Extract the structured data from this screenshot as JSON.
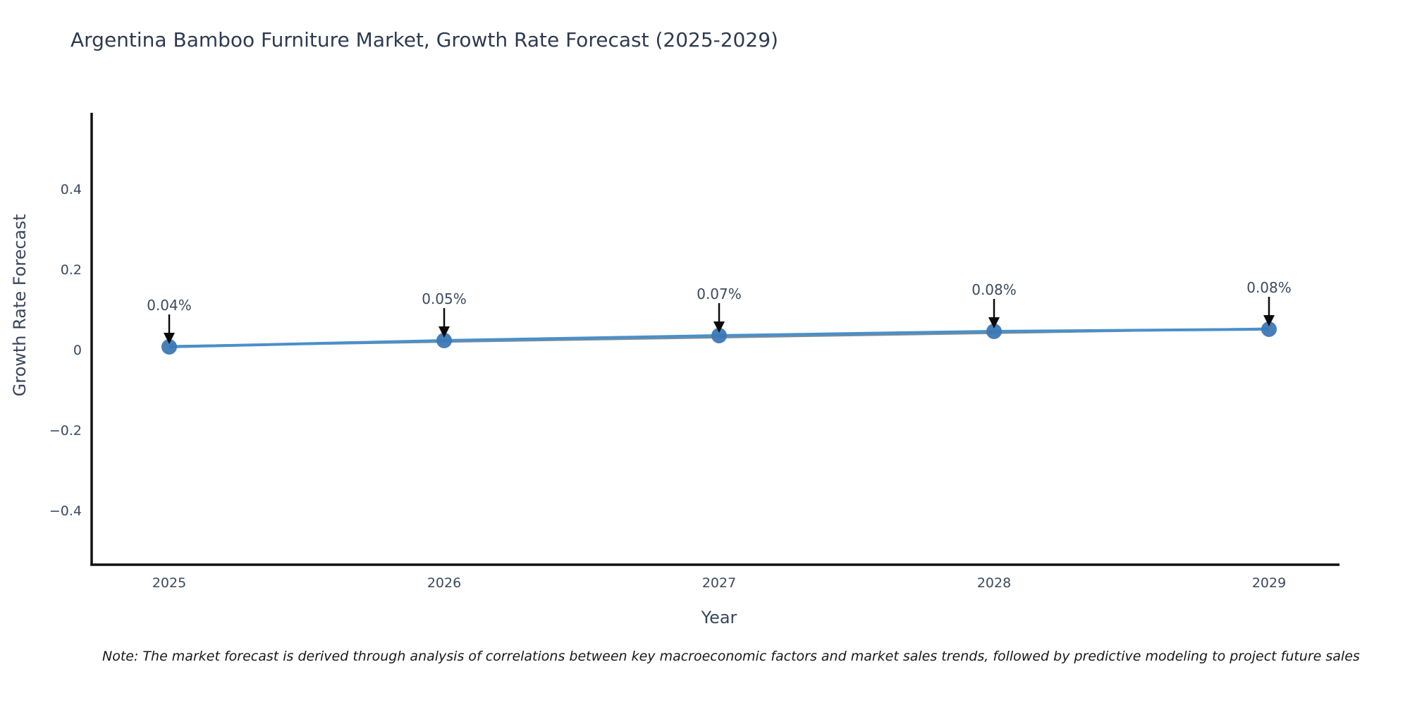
{
  "title": "Argentina Bamboo Furniture Market, Growth Rate Forecast (2025-2029)",
  "note": "Note: The market forecast is derived through analysis of correlations between key macroeconomic factors and market sales trends, followed by predictive modeling to project future sales",
  "chart_data": {
    "type": "line",
    "title": "Argentina Bamboo Furniture Market, Growth Rate Forecast (2025-2029)",
    "xlabel": "Year",
    "ylabel": "Growth Rate Forecast",
    "categories": [
      "2025",
      "2026",
      "2027",
      "2028",
      "2029"
    ],
    "series": [
      {
        "name": "Growth Rate Forecast",
        "values": [
          0.04,
          0.05,
          0.07,
          0.08,
          0.08
        ]
      }
    ],
    "point_labels": [
      "0.04%",
      "0.05%",
      "0.07%",
      "0.08%",
      "0.08%"
    ],
    "ytick_labels": [
      "0.4",
      "0.2",
      "0",
      "−0.2",
      "−0.4"
    ],
    "ytick_values": [
      0.4,
      0.2,
      0,
      -0.2,
      -0.4
    ],
    "ylim": [
      -0.54,
      0.59
    ],
    "grid": false,
    "legend": false,
    "annotations": "black down-arrows from each data label to its marker",
    "colors": {
      "line": "#4a90ca",
      "trend_underlay": "#5d6f7e",
      "marker": "#3c78b5",
      "arrow": "#0b0b0b",
      "tick_text": "#3b4a5e",
      "title_text": "#2e3a50",
      "axis_line": "#111111"
    }
  }
}
